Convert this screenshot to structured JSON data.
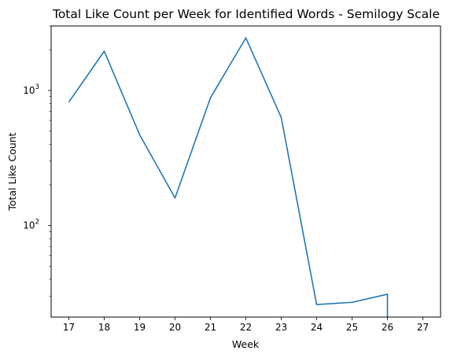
{
  "chart_data": {
    "type": "line",
    "title": "Total Like Count per Week for Identified Words - Semilogy Scale",
    "xlabel": "Week",
    "ylabel": "Total Like Count",
    "yscale": "log",
    "grid": false,
    "legend": "none",
    "xlim": [
      16.5,
      27.5
    ],
    "ylim": [
      21,
      3000
    ],
    "x_ticks": [
      17,
      18,
      19,
      20,
      21,
      22,
      23,
      24,
      25,
      26,
      27
    ],
    "y_ticks": [
      {
        "value": 100,
        "base": "10",
        "exp": "2"
      },
      {
        "value": 1000,
        "base": "10",
        "exp": "3"
      }
    ],
    "series": [
      {
        "color": "#1f77b4",
        "x": [
          17,
          18,
          19,
          20,
          21,
          22,
          23,
          24,
          25,
          26,
          26
        ],
        "y": [
          820,
          1950,
          470,
          160,
          880,
          2450,
          630,
          26,
          27,
          31,
          1
        ]
      }
    ]
  }
}
